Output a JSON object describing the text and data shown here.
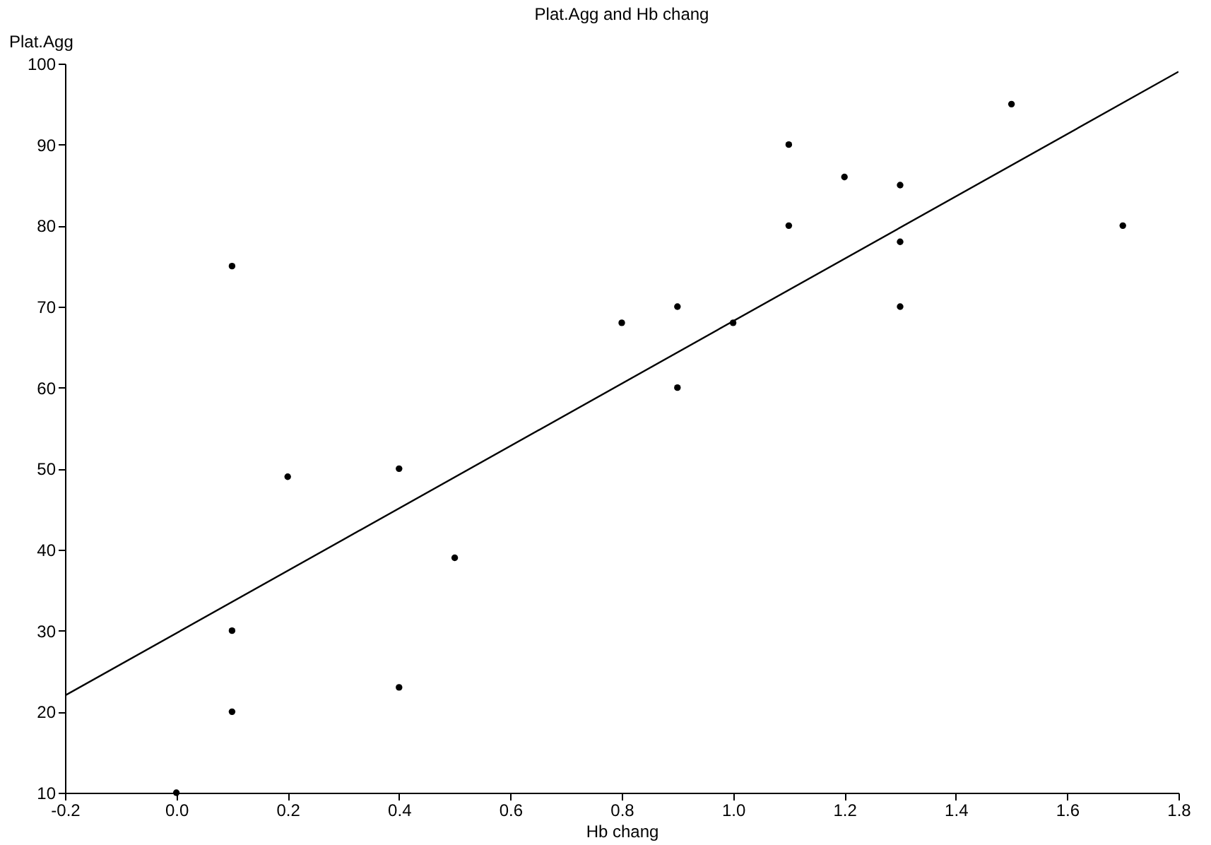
{
  "chart_data": {
    "type": "scatter",
    "title": "Plat.Agg and Hb chang",
    "xlabel": "Hb chang",
    "ylabel": "Plat.Agg",
    "xlim": [
      -0.2,
      1.8
    ],
    "xticks": [
      {
        "value": -0.2,
        "label": "-0.2"
      },
      {
        "value": 0,
        "label": "0.0"
      },
      {
        "value": 0.2,
        "label": "0.2"
      },
      {
        "value": 0.4,
        "label": "0.4"
      },
      {
        "value": 0.6,
        "label": "0.6"
      },
      {
        "value": 0.8,
        "label": "0.8"
      },
      {
        "value": 1,
        "label": "1.0"
      },
      {
        "value": 1.2,
        "label": "1.2"
      },
      {
        "value": 1.4,
        "label": "1.4"
      },
      {
        "value": 1.6,
        "label": "1.6"
      },
      {
        "value": 1.8,
        "label": "1.8"
      }
    ],
    "ylim": [
      10,
      100
    ],
    "yticks": [
      10,
      20,
      30,
      40,
      50,
      60,
      70,
      80,
      90,
      100
    ],
    "grid": false,
    "series": [
      {
        "marker": "circle",
        "color": "#000000",
        "x": [
          0,
          0.1,
          0.1,
          0.1,
          0.2,
          0.4,
          0.4,
          0.5,
          0.8,
          0.9,
          0.9,
          1,
          1.1,
          1.1,
          1.2,
          1.3,
          1.3,
          1.3,
          1.5,
          1.7
        ],
        "values": [
          10,
          75,
          30,
          20,
          49,
          50,
          23,
          39,
          68,
          70,
          60,
          68,
          90,
          80,
          86,
          85,
          78,
          70,
          95,
          80
        ]
      },
      {
        "type": "line",
        "color": "#000000",
        "x": [
          -0.2,
          1.8
        ],
        "values": [
          22,
          99
        ]
      }
    ]
  }
}
